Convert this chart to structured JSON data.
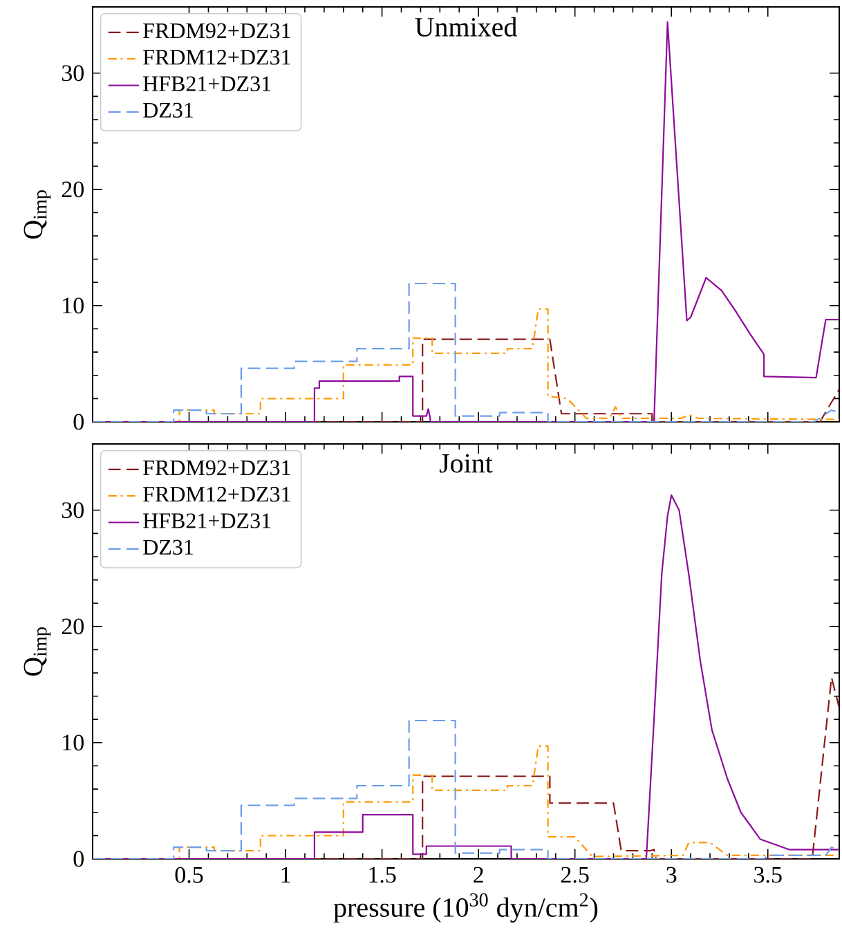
{
  "chart_data": [
    {
      "type": "line",
      "title": "Unmixed",
      "ylabel": "Q$_{imp}$",
      "xlim": [
        0,
        3.87
      ],
      "ylim": [
        0,
        35.7
      ],
      "xticks": [
        0.5,
        1,
        1.5,
        2,
        2.5,
        3,
        3.5
      ],
      "yticks": [
        0,
        10,
        20,
        30
      ],
      "tick_labels": "y",
      "legend": "top left",
      "series": [
        {
          "name": "FRDM92+DZ31",
          "color": "#8b1a1a",
          "line_style": "dashed",
          "x": [
            0,
            1.71,
            1.71,
            2.37,
            2.43,
            2.9,
            2.9,
            3.77,
            3.87
          ],
          "values": [
            0,
            0,
            7.1,
            7.1,
            0.7,
            0.7,
            0,
            0,
            2.8
          ]
        },
        {
          "name": "FRDM12+DZ31",
          "color": "#ff9a00",
          "line_style": "dashdot",
          "x": [
            0,
            0.45,
            0.45,
            0.63,
            0.63,
            0.87,
            0.87,
            1.3,
            1.3,
            1.66,
            1.66,
            1.76,
            1.76,
            2.15,
            2.15,
            2.28,
            2.31,
            2.36,
            2.36,
            2.46,
            2.56,
            2.68,
            2.71,
            2.74,
            3.05,
            3.09,
            3.14,
            3.87
          ],
          "values": [
            0,
            0,
            1.0,
            1.0,
            0.7,
            0.7,
            2.0,
            2.0,
            4.9,
            4.9,
            7.2,
            7.2,
            5.9,
            5.9,
            6.3,
            6.3,
            9.7,
            9.7,
            2.2,
            2.0,
            0.3,
            0.3,
            1.3,
            0.3,
            0.3,
            0.6,
            0.3,
            0.2
          ]
        },
        {
          "name": "HFB21+DZ31",
          "color": "#8e0a9a",
          "line_style": "solid",
          "x": [
            0,
            1.15,
            1.15,
            1.175,
            1.175,
            1.59,
            1.59,
            1.66,
            1.66,
            1.73,
            1.74,
            1.75,
            1.75,
            2.91,
            2.98,
            3.08,
            3.1,
            3.18,
            3.26,
            3.33,
            3.41,
            3.48,
            3.48,
            3.75,
            3.8,
            3.87
          ],
          "values": [
            0,
            0,
            2.9,
            2.9,
            3.5,
            3.5,
            3.9,
            3.9,
            0.5,
            0.5,
            1.1,
            0.3,
            0,
            0,
            34.4,
            8.7,
            9.0,
            12.4,
            11.3,
            9.6,
            7.5,
            5.8,
            3.9,
            3.8,
            8.8,
            8.8
          ]
        },
        {
          "name": "DZ31",
          "color": "#6d9eeb",
          "line_style": "dashed",
          "x": [
            0,
            0.42,
            0.42,
            0.59,
            0.59,
            0.77,
            0.77,
            1.045,
            1.045,
            1.37,
            1.37,
            1.64,
            1.64,
            1.88,
            1.88,
            2.11,
            2.11,
            2.36,
            2.36,
            3.74,
            3.83,
            3.87
          ],
          "values": [
            0,
            0,
            1.0,
            1.0,
            0.7,
            0.7,
            4.6,
            4.6,
            5.2,
            5.2,
            6.3,
            6.3,
            11.9,
            11.9,
            0.5,
            0.5,
            0.8,
            0.8,
            0,
            0,
            1.0,
            0.8
          ]
        }
      ]
    },
    {
      "type": "line",
      "title": "Joint",
      "xlabel": "pressure (10$^{30}$ dyn/cm$^{2}$)",
      "ylabel": "Q$_{imp}$",
      "xlim": [
        0,
        3.87
      ],
      "ylim": [
        0,
        35.7
      ],
      "xticks": [
        0.5,
        1,
        1.5,
        2,
        2.5,
        3,
        3.5
      ],
      "yticks": [
        0,
        10,
        20,
        30
      ],
      "legend": "top left",
      "series": [
        {
          "name": "FRDM92+DZ31",
          "color": "#8b1a1a",
          "line_style": "dashed",
          "x": [
            0,
            1.71,
            1.71,
            2.37,
            2.37,
            2.7,
            2.74,
            2.89,
            2.91,
            2.92,
            3.73,
            3.83,
            3.87
          ],
          "values": [
            0,
            0,
            7.1,
            7.1,
            4.8,
            4.8,
            0.7,
            0.7,
            0.8,
            0,
            0,
            15.6,
            13
          ]
        },
        {
          "name": "FRDM12+DZ31",
          "color": "#ff9a00",
          "line_style": "dashdot",
          "x": [
            0,
            0.45,
            0.45,
            0.63,
            0.63,
            0.87,
            0.87,
            1.3,
            1.3,
            1.66,
            1.66,
            1.76,
            1.76,
            2.15,
            2.15,
            2.28,
            2.31,
            2.36,
            2.36,
            2.5,
            2.59,
            3.06,
            3.09,
            3.2,
            3.29,
            3.87
          ],
          "values": [
            0,
            0,
            1.0,
            1.0,
            0.7,
            0.7,
            2.0,
            2.0,
            4.9,
            4.9,
            7.2,
            7.2,
            5.9,
            5.9,
            6.3,
            6.3,
            9.7,
            9.7,
            1.9,
            1.9,
            0.2,
            0.3,
            1.4,
            1.4,
            0.3,
            0.3
          ]
        },
        {
          "name": "HFB21+DZ31",
          "color": "#8e0a9a",
          "line_style": "solid",
          "x": [
            0,
            1.15,
            1.15,
            1.4,
            1.4,
            1.66,
            1.66,
            1.73,
            1.73,
            2.17,
            2.17,
            2.87,
            2.91,
            2.95,
            2.98,
            3.0,
            3.04,
            3.09,
            3.15,
            3.21,
            3.29,
            3.36,
            3.46,
            3.61,
            3.87
          ],
          "values": [
            0,
            0,
            2.3,
            2.3,
            3.8,
            3.8,
            0.4,
            0.4,
            1.1,
            1.1,
            0,
            0,
            12,
            24.5,
            29.5,
            31.3,
            30,
            24.5,
            17,
            11.1,
            6.9,
            4.0,
            1.7,
            0.8,
            0.8
          ]
        },
        {
          "name": "DZ31",
          "color": "#6d9eeb",
          "line_style": "dashed",
          "x": [
            0,
            0.42,
            0.42,
            0.59,
            0.59,
            0.77,
            0.77,
            1.045,
            1.045,
            1.37,
            1.37,
            1.64,
            1.64,
            1.88,
            1.88,
            2.11,
            2.11,
            2.36,
            2.36,
            3.48,
            3.5,
            3.8,
            3.83,
            3.87
          ],
          "values": [
            0,
            0,
            1.0,
            1.0,
            0.7,
            0.7,
            4.6,
            4.6,
            5.2,
            5.2,
            6.3,
            6.3,
            11.9,
            11.9,
            0.5,
            0.5,
            0.8,
            0.8,
            0,
            0,
            0.3,
            0.3,
            1.0,
            0.8
          ]
        }
      ]
    }
  ]
}
